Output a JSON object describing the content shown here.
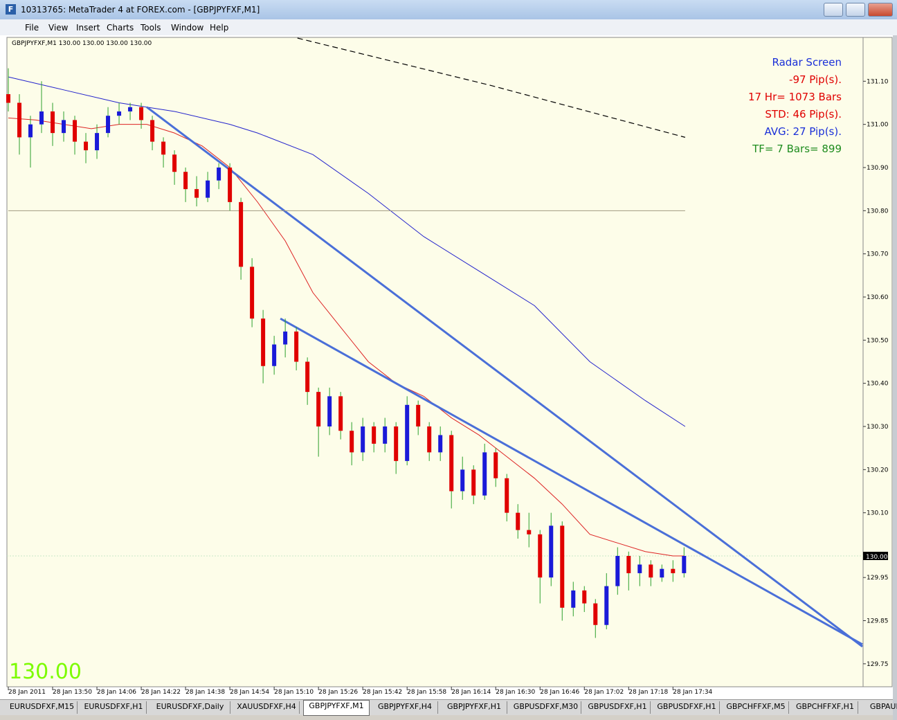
{
  "window": {
    "title": "10313765: MetaTrader 4 at FOREX.com - [GBPJPYFXF,M1]",
    "menu": [
      "File",
      "View",
      "Insert",
      "Charts",
      "Tools",
      "Window",
      "Help"
    ],
    "tabs": [
      "EURUSDFXF,M15",
      "EURUSDFXF,H1",
      "EURUSDFXF,Daily",
      "XAUUSDFXF,H4",
      "GBPJPYFXF,M1",
      "GBPJPYFXF,H4",
      "GBPJPYFXF,H1",
      "GBPUSDFXF,M30",
      "GBPUSDFXF,H1",
      "GBPUSDFXF,H1",
      "GBPCHFFXF,M5",
      "GBPCHFFXF,H1",
      "GBPAUDFXF"
    ],
    "active_tab": 4
  },
  "chart_data": {
    "type": "candlestick",
    "header": "GBPJPYFXF,M1  130.00 130.00 130.00 130.00",
    "last_price_label": "130.00",
    "background": "#fdfde9",
    "up_color": "#1a1ad8",
    "down_color": "#e00000",
    "wick_color": "#2ca02c",
    "candles": [
      [
        131.07,
        131.13,
        131.03,
        131.05
      ],
      [
        131.05,
        131.07,
        130.93,
        130.97
      ],
      [
        130.97,
        131.02,
        130.9,
        131.0
      ],
      [
        131.0,
        131.1,
        130.98,
        131.03
      ],
      [
        131.03,
        131.05,
        130.95,
        130.98
      ],
      [
        130.98,
        131.03,
        130.96,
        131.01
      ],
      [
        131.01,
        131.02,
        130.93,
        130.96
      ],
      [
        130.96,
        130.98,
        130.91,
        130.94
      ],
      [
        130.94,
        131.0,
        130.92,
        130.98
      ],
      [
        130.98,
        131.04,
        130.97,
        131.02
      ],
      [
        131.02,
        131.05,
        131.0,
        131.03
      ],
      [
        131.03,
        131.05,
        131.01,
        131.04
      ],
      [
        131.04,
        131.05,
        130.99,
        131.01
      ],
      [
        131.01,
        131.02,
        130.94,
        130.96
      ],
      [
        130.96,
        130.97,
        130.9,
        130.93
      ],
      [
        130.93,
        130.94,
        130.86,
        130.89
      ],
      [
        130.89,
        130.9,
        130.82,
        130.85
      ],
      [
        130.85,
        130.88,
        130.81,
        130.83
      ],
      [
        130.83,
        130.89,
        130.82,
        130.87
      ],
      [
        130.87,
        130.91,
        130.85,
        130.9
      ],
      [
        130.9,
        130.91,
        130.8,
        130.82
      ],
      [
        130.82,
        130.83,
        130.64,
        130.67
      ],
      [
        130.67,
        130.69,
        130.53,
        130.55
      ],
      [
        130.55,
        130.57,
        130.4,
        130.44
      ],
      [
        130.44,
        130.51,
        130.42,
        130.49
      ],
      [
        130.49,
        130.55,
        130.46,
        130.52
      ],
      [
        130.52,
        130.53,
        130.43,
        130.45
      ],
      [
        130.45,
        130.46,
        130.35,
        130.38
      ],
      [
        130.38,
        130.39,
        130.23,
        130.3
      ],
      [
        130.3,
        130.39,
        130.28,
        130.37
      ],
      [
        130.37,
        130.38,
        130.27,
        130.29
      ],
      [
        130.29,
        130.31,
        130.21,
        130.24
      ],
      [
        130.24,
        130.32,
        130.22,
        130.3
      ],
      [
        130.3,
        130.31,
        130.24,
        130.26
      ],
      [
        130.26,
        130.32,
        130.24,
        130.3
      ],
      [
        130.3,
        130.31,
        130.19,
        130.22
      ],
      [
        130.22,
        130.37,
        130.21,
        130.35
      ],
      [
        130.35,
        130.36,
        130.28,
        130.3
      ],
      [
        130.3,
        130.31,
        130.22,
        130.24
      ],
      [
        130.24,
        130.3,
        130.22,
        130.28
      ],
      [
        130.28,
        130.29,
        130.11,
        130.15
      ],
      [
        130.15,
        130.23,
        130.13,
        130.2
      ],
      [
        130.2,
        130.21,
        130.12,
        130.14
      ],
      [
        130.14,
        130.26,
        130.13,
        130.24
      ],
      [
        130.24,
        130.25,
        130.16,
        130.18
      ],
      [
        130.18,
        130.19,
        130.08,
        130.1
      ],
      [
        130.1,
        130.12,
        130.04,
        130.06
      ],
      [
        130.06,
        130.1,
        130.02,
        130.05
      ],
      [
        130.05,
        130.06,
        129.89,
        129.95
      ],
      [
        129.95,
        130.1,
        129.93,
        130.07
      ],
      [
        130.07,
        130.08,
        129.85,
        129.88
      ],
      [
        129.88,
        129.94,
        129.86,
        129.92
      ],
      [
        129.92,
        129.93,
        129.87,
        129.89
      ],
      [
        129.89,
        129.9,
        129.81,
        129.84
      ],
      [
        129.84,
        129.96,
        129.83,
        129.93
      ],
      [
        129.93,
        130.02,
        129.91,
        130.0
      ],
      [
        130.0,
        130.01,
        129.92,
        129.96
      ],
      [
        129.96,
        130.0,
        129.93,
        129.98
      ],
      [
        129.98,
        129.99,
        129.93,
        129.95
      ],
      [
        129.95,
        129.98,
        129.94,
        129.97
      ],
      [
        129.97,
        129.99,
        129.94,
        129.96
      ],
      [
        129.96,
        130.02,
        129.95,
        130.0
      ]
    ],
    "lines": [
      {
        "color": "#dd2222",
        "width": 1,
        "x": [
          0,
          2.5,
          5,
          7.5,
          10,
          12.5,
          15,
          17.5,
          20,
          22.5,
          25,
          27.5,
          30,
          32.5,
          35,
          37.5,
          40,
          42.5,
          45,
          47.5,
          50,
          52.5,
          55,
          57.5,
          60,
          61
        ],
        "values": [
          131.015,
          131.01,
          131.0,
          130.99,
          131.0,
          131.0,
          130.98,
          130.95,
          130.9,
          130.82,
          130.73,
          130.61,
          130.53,
          130.45,
          130.4,
          130.37,
          130.32,
          130.28,
          130.23,
          130.18,
          130.12,
          130.05,
          130.03,
          130.01,
          130.0,
          130.0
        ]
      },
      {
        "color": "#2222cc",
        "width": 1,
        "x": [
          0,
          5,
          10,
          15,
          20,
          22.5,
          27.5,
          32.5,
          37.5,
          42.5,
          47.5,
          52.5,
          57.5,
          61.1
        ],
        "values": [
          131.11,
          131.08,
          131.05,
          131.03,
          131.0,
          130.98,
          130.93,
          130.84,
          130.74,
          130.66,
          130.58,
          130.45,
          130.36,
          130.3
        ]
      },
      {
        "color": "#000000",
        "width": 1.2,
        "dash": "8,5",
        "x": [
          26.1,
          43.6,
          61.1
        ],
        "values": [
          131.2,
          131.09,
          130.97
        ]
      },
      {
        "color": "#4a6fd8",
        "width": 3,
        "x": [
          12.5,
          77.1
        ],
        "values": [
          131.04,
          129.79
        ]
      },
      {
        "color": "#4a6fd8",
        "width": 3,
        "x": [
          24.56,
          77.1
        ],
        "values": [
          130.55,
          129.795
        ]
      },
      {
        "color": "#a09a80",
        "width": 1,
        "x": [
          0,
          61.1
        ],
        "values": [
          130.8,
          130.8
        ]
      }
    ],
    "bid_line": {
      "value": 130.0,
      "label": "130.00"
    },
    "annotations": [
      {
        "text": "Radar Screen",
        "color": "#1a2fd8"
      },
      {
        "text": "-97 Pip(s).",
        "color": "#e00000"
      },
      {
        "text": "17 Hr= 1073 Bars",
        "color": "#e00000"
      },
      {
        "text": "STD: 46 Pip(s).",
        "color": "#e00000"
      },
      {
        "text": "AVG: 27 Pip(s).",
        "color": "#1a2fd8"
      },
      {
        "text": "TF= 7 Bars= 899",
        "color": "#1e8c1e"
      }
    ],
    "xlim": [
      0,
      77.1
    ],
    "ylim": [
      129.7,
      131.2
    ],
    "xticks": [
      {
        "value": 0,
        "label": "28 Jan 2011"
      },
      {
        "value": 4,
        "label": "28 Jan 13:50"
      },
      {
        "value": 8,
        "label": "28 Jan 14:06"
      },
      {
        "value": 12,
        "label": "28 Jan 14:22"
      },
      {
        "value": 16,
        "label": "28 Jan 14:38"
      },
      {
        "value": 20,
        "label": "28 Jan 14:54"
      },
      {
        "value": 24,
        "label": "28 Jan 15:10"
      },
      {
        "value": 28,
        "label": "28 Jan 15:26"
      },
      {
        "value": 32,
        "label": "28 Jan 15:42"
      },
      {
        "value": 36,
        "label": "28 Jan 15:58"
      },
      {
        "value": 40,
        "label": "28 Jan 16:14"
      },
      {
        "value": 44,
        "label": "28 Jan 16:30"
      },
      {
        "value": 48,
        "label": "28 Jan 16:46"
      },
      {
        "value": 52,
        "label": "28 Jan 17:02"
      },
      {
        "value": 56,
        "label": "28 Jan 17:18"
      },
      {
        "value": 60,
        "label": "28 Jan 17:34"
      }
    ],
    "yticks": [
      {
        "value": 131.1,
        "label": "131.10"
      },
      {
        "value": 131.0,
        "label": "131.00"
      },
      {
        "value": 130.9,
        "label": "130.90"
      },
      {
        "value": 130.8,
        "label": "130.80"
      },
      {
        "value": 130.7,
        "label": "130.70"
      },
      {
        "value": 130.6,
        "label": "130.60"
      },
      {
        "value": 130.5,
        "label": "130.50"
      },
      {
        "value": 130.4,
        "label": "130.40"
      },
      {
        "value": 130.3,
        "label": "130.30"
      },
      {
        "value": 130.2,
        "label": "130.20"
      },
      {
        "value": 130.1,
        "label": "130.10"
      },
      {
        "value": 129.95,
        "label": "129.95"
      },
      {
        "value": 129.85,
        "label": "129.85"
      },
      {
        "value": 129.75,
        "label": "129.75"
      }
    ]
  }
}
